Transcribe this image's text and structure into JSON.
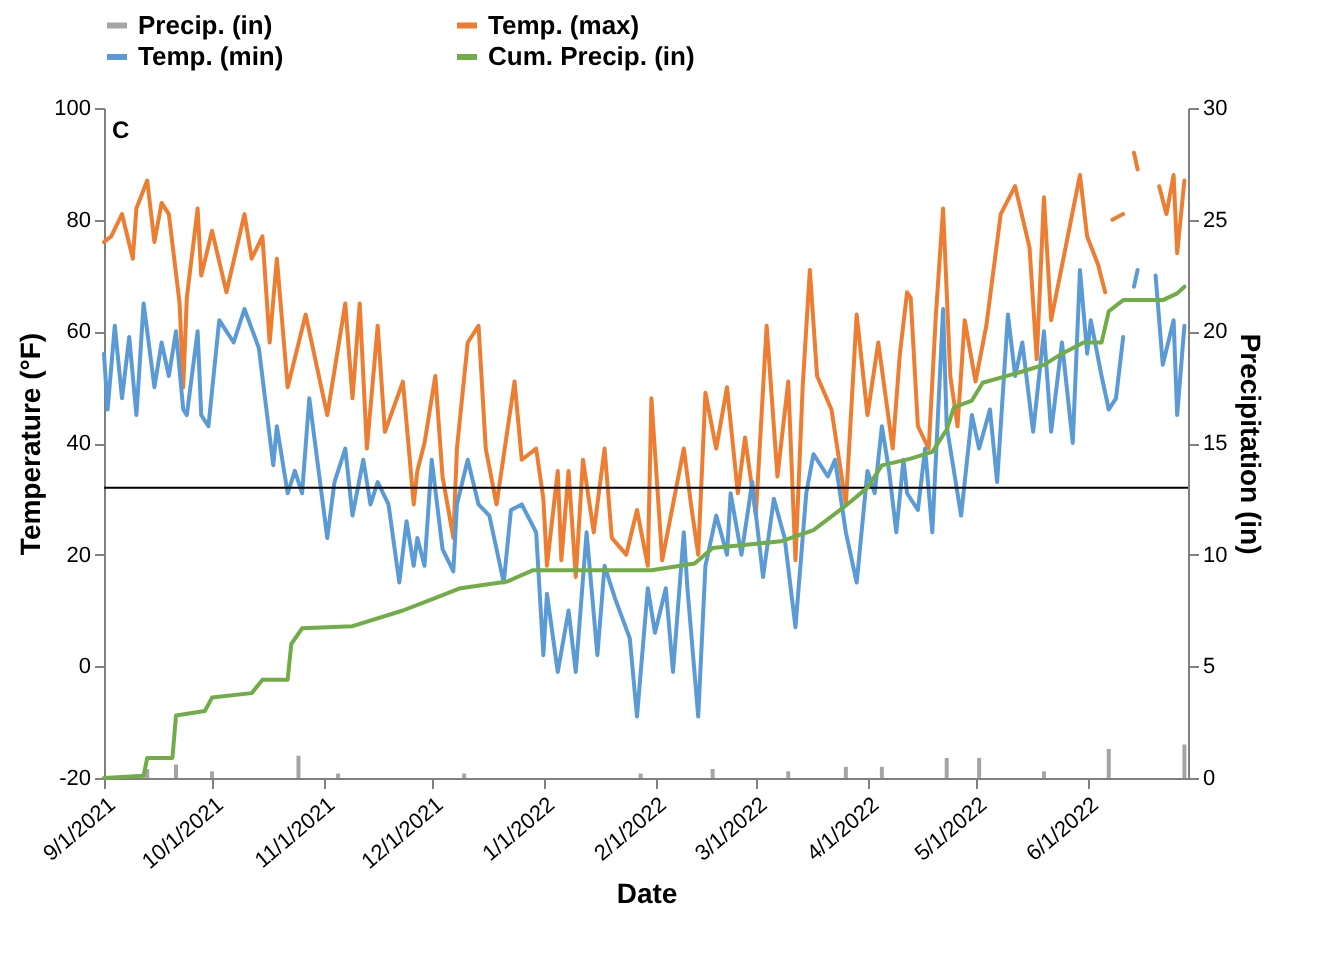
{
  "chart_data": {
    "type": "line",
    "xlabel": "Date",
    "ylabel": "Temperature (°F)",
    "y2label": "Precipitation (in)",
    "annotations": [
      "C"
    ],
    "legend": "top",
    "xlim": [
      "2021-09-01",
      "2022-06-29"
    ],
    "xticks": [
      {
        "value": "2021-09-01",
        "label": "9/1/2021"
      },
      {
        "value": "2021-10-01",
        "label": "10/1/2021"
      },
      {
        "value": "2021-11-01",
        "label": "11/1/2021"
      },
      {
        "value": "2021-12-01",
        "label": "12/1/2021"
      },
      {
        "value": "2022-01-01",
        "label": "1/1/2022"
      },
      {
        "value": "2022-02-01",
        "label": "2/1/2022"
      },
      {
        "value": "2022-03-01",
        "label": "3/1/2022"
      },
      {
        "value": "2022-04-01",
        "label": "4/1/2022"
      },
      {
        "value": "2022-05-01",
        "label": "5/1/2022"
      },
      {
        "value": "2022-06-01",
        "label": "6/1/2022"
      }
    ],
    "ylim": [
      -20,
      100
    ],
    "yticks": [
      -20,
      0,
      20,
      40,
      60,
      80,
      100
    ],
    "y2lim": [
      0,
      30
    ],
    "y2ticks": [
      0,
      5,
      10,
      15,
      20,
      25,
      30
    ],
    "ref_lines": [
      {
        "axis": "y",
        "value": 32,
        "color": "#000000"
      }
    ],
    "series": [
      {
        "name": "Precip. (in)",
        "type": "bar",
        "axis": "y2",
        "color": "#a5a5a5",
        "x": [
          "2021-09-13",
          "2021-09-21",
          "2021-10-01",
          "2021-10-25",
          "2021-11-05",
          "2021-12-10",
          "2022-01-28",
          "2022-02-17",
          "2022-03-10",
          "2022-03-26",
          "2022-04-05",
          "2022-04-23",
          "2022-05-02",
          "2022-05-20",
          "2022-06-07",
          "2022-06-28"
        ],
        "values": [
          0.4,
          0.6,
          0.3,
          1.0,
          0.2,
          0.2,
          0.2,
          0.4,
          0.3,
          0.5,
          0.5,
          0.9,
          0.9,
          0.3,
          1.3,
          1.5
        ]
      },
      {
        "name": "Temp. (max)",
        "type": "line",
        "color": "#ed7d31",
        "x": [
          "2021-09-01",
          "2021-09-03",
          "2021-09-06",
          "2021-09-09",
          "2021-09-10",
          "2021-09-13",
          "2021-09-15",
          "2021-09-17",
          "2021-09-19",
          "2021-09-22",
          "2021-09-23",
          "2021-09-24",
          "2021-09-27",
          "2021-09-28",
          "2021-10-01",
          "2021-10-05",
          "2021-10-10",
          "2021-10-12",
          "2021-10-15",
          "2021-10-17",
          "2021-10-19",
          "2021-10-22",
          "2021-10-27",
          "2021-11-02",
          "2021-11-07",
          "2021-11-09",
          "2021-11-11",
          "2021-11-13",
          "2021-11-16",
          "2021-11-18",
          "2021-11-23",
          "2021-11-26",
          "2021-11-27",
          "2021-11-29",
          "2021-12-02",
          "2021-12-04",
          "2021-12-07",
          "2021-12-08",
          "2021-12-11",
          "2021-12-14",
          "2021-12-16",
          "2021-12-19",
          "2021-12-24",
          "2021-12-26",
          "2021-12-30",
          "2022-01-01",
          "2022-01-02",
          "2022-01-05",
          "2022-01-06",
          "2022-01-08",
          "2022-01-10",
          "2022-01-12",
          "2022-01-15",
          "2022-01-18",
          "2022-01-20",
          "2022-01-24",
          "2022-01-27",
          "2022-01-30",
          "2022-01-31",
          "2022-02-03",
          "2022-02-06",
          "2022-02-09",
          "2022-02-11",
          "2022-02-13",
          "2022-02-15",
          "2022-02-18",
          "2022-02-21",
          "2022-02-24",
          "2022-02-26",
          "2022-03-01",
          "2022-03-04",
          "2022-03-07",
          "2022-03-10",
          "2022-03-12",
          "2022-03-14",
          "2022-03-16",
          "2022-03-18",
          "2022-03-22",
          "2022-03-26",
          "2022-03-29",
          "2022-04-01",
          "2022-04-04",
          "2022-04-08",
          "2022-04-10",
          "2022-04-12",
          "2022-04-13",
          "2022-04-15",
          "2022-04-18",
          "2022-04-20",
          "2022-04-22",
          "2022-04-24",
          "2022-04-26",
          "2022-04-28",
          "2022-05-01",
          "2022-05-04",
          "2022-05-08",
          "2022-05-12",
          "2022-05-16",
          "2022-05-18",
          "2022-05-20",
          "2022-05-22",
          "2022-05-26",
          "2022-05-30",
          "2022-06-01",
          "2022-06-04",
          "2022-06-06",
          "2022-06-07",
          "2022-06-08",
          "2022-06-11",
          "2022-06-12",
          "2022-06-14",
          "2022-06-15",
          "2022-06-16",
          "2022-06-21",
          "2022-06-23",
          "2022-06-25",
          "2022-06-26",
          "2022-06-28"
        ],
        "values": [
          76,
          77,
          81,
          73,
          82,
          87,
          76,
          83,
          81,
          65,
          50,
          66,
          82,
          70,
          78,
          67,
          81,
          73,
          77,
          58,
          73,
          50,
          63,
          45,
          65,
          48,
          65,
          39,
          61,
          42,
          51,
          29,
          35,
          40,
          52,
          34,
          23,
          39,
          58,
          61,
          39,
          29,
          51,
          37,
          39,
          30,
          18,
          35,
          19,
          35,
          16,
          37,
          24,
          39,
          23,
          20,
          28,
          18,
          48,
          19,
          29,
          39,
          29,
          20,
          49,
          39,
          50,
          31,
          41,
          27,
          61,
          34,
          51,
          19,
          50,
          71,
          52,
          46,
          29,
          63,
          45,
          58,
          39,
          56,
          67,
          66,
          43,
          39,
          63,
          82,
          52,
          43,
          62,
          51,
          61,
          81,
          86,
          75,
          55,
          84,
          62,
          75,
          88,
          77,
          72,
          67,
          null,
          80,
          81,
          null,
          92,
          89,
          null,
          86,
          81,
          88,
          74,
          87
        ]
      },
      {
        "name": "Temp. (min)",
        "type": "line",
        "color": "#5b9bd5",
        "x": [
          "2021-09-01",
          "2021-09-02",
          "2021-09-04",
          "2021-09-06",
          "2021-09-08",
          "2021-09-10",
          "2021-09-12",
          "2021-09-13",
          "2021-09-15",
          "2021-09-17",
          "2021-09-19",
          "2021-09-21",
          "2021-09-23",
          "2021-09-24",
          "2021-09-27",
          "2021-09-28",
          "2021-09-30",
          "2021-10-03",
          "2021-10-07",
          "2021-10-10",
          "2021-10-14",
          "2021-10-18",
          "2021-10-19",
          "2021-10-22",
          "2021-10-24",
          "2021-10-26",
          "2021-10-28",
          "2021-10-30",
          "2021-11-02",
          "2021-11-04",
          "2021-11-07",
          "2021-11-09",
          "2021-11-12",
          "2021-11-14",
          "2021-11-16",
          "2021-11-19",
          "2021-11-22",
          "2021-11-24",
          "2021-11-26",
          "2021-11-27",
          "2021-11-29",
          "2021-12-01",
          "2021-12-04",
          "2021-12-07",
          "2021-12-08",
          "2021-12-11",
          "2021-12-14",
          "2021-12-17",
          "2021-12-21",
          "2021-12-23",
          "2021-12-26",
          "2021-12-30",
          "2022-01-01",
          "2022-01-02",
          "2022-01-05",
          "2022-01-08",
          "2022-01-10",
          "2022-01-13",
          "2022-01-16",
          "2022-01-18",
          "2022-01-21",
          "2022-01-25",
          "2022-01-27",
          "2022-01-30",
          "2022-02-01",
          "2022-02-04",
          "2022-02-06",
          "2022-02-09",
          "2022-02-10",
          "2022-02-13",
          "2022-02-15",
          "2022-02-18",
          "2022-02-21",
          "2022-02-22",
          "2022-02-25",
          "2022-02-28",
          "2022-03-03",
          "2022-03-06",
          "2022-03-09",
          "2022-03-12",
          "2022-03-15",
          "2022-03-17",
          "2022-03-21",
          "2022-03-23",
          "2022-03-26",
          "2022-03-29",
          "2022-04-01",
          "2022-04-03",
          "2022-04-05",
          "2022-04-07",
          "2022-04-09",
          "2022-04-11",
          "2022-04-12",
          "2022-04-15",
          "2022-04-17",
          "2022-04-19",
          "2022-04-22",
          "2022-04-23",
          "2022-04-26",
          "2022-04-27",
          "2022-04-30",
          "2022-05-02",
          "2022-05-05",
          "2022-05-07",
          "2022-05-10",
          "2022-05-12",
          "2022-05-14",
          "2022-05-17",
          "2022-05-20",
          "2022-05-22",
          "2022-05-25",
          "2022-05-28",
          "2022-05-30",
          "2022-06-01",
          "2022-06-02",
          "2022-06-05",
          "2022-06-07",
          "2022-06-09",
          "2022-06-11",
          "2022-06-12",
          "2022-06-14",
          "2022-06-15",
          "2022-06-16",
          "2022-06-20",
          "2022-06-22",
          "2022-06-25",
          "2022-06-26",
          "2022-06-28"
        ],
        "values": [
          56,
          46,
          61,
          48,
          59,
          45,
          65,
          60,
          50,
          58,
          52,
          60,
          46,
          45,
          60,
          45,
          43,
          62,
          58,
          64,
          57,
          36,
          43,
          31,
          35,
          31,
          48,
          38,
          23,
          33,
          39,
          27,
          37,
          29,
          33,
          29,
          15,
          26,
          18,
          23,
          18,
          37,
          21,
          17,
          29,
          37,
          29,
          27,
          15,
          28,
          29,
          24,
          2,
          13,
          -1,
          10,
          -1,
          24,
          2,
          18,
          12,
          5,
          -9,
          14,
          6,
          14,
          -1,
          24,
          14,
          -9,
          18,
          27,
          20,
          31,
          20,
          33,
          16,
          30,
          23,
          7,
          31,
          38,
          34,
          37,
          24,
          15,
          35,
          31,
          43,
          35,
          24,
          37,
          31,
          28,
          39,
          24,
          64,
          43,
          31,
          27,
          45,
          39,
          46,
          33,
          63,
          52,
          58,
          42,
          60,
          42,
          58,
          40,
          71,
          56,
          62,
          52,
          46,
          48,
          59,
          null,
          68,
          71,
          null,
          70,
          54,
          62,
          45,
          61
        ]
      },
      {
        "name": "Cum. Precip. (in)",
        "type": "line",
        "axis": "y2",
        "color": "#70ad47",
        "x": [
          "2021-09-01",
          "2021-09-12",
          "2021-09-13",
          "2021-09-20",
          "2021-09-21",
          "2021-09-29",
          "2021-10-01",
          "2021-10-12",
          "2021-10-15",
          "2021-10-22",
          "2021-10-23",
          "2021-10-26",
          "2021-11-09",
          "2021-11-23",
          "2021-12-01",
          "2021-12-09",
          "2021-12-22",
          "2021-12-29",
          "2022-01-31",
          "2022-02-12",
          "2022-02-17",
          "2022-03-08",
          "2022-03-17",
          "2022-03-26",
          "2022-04-01",
          "2022-04-05",
          "2022-04-13",
          "2022-04-19",
          "2022-04-23",
          "2022-04-25",
          "2022-04-30",
          "2022-05-03",
          "2022-05-14",
          "2022-05-20",
          "2022-05-25",
          "2022-05-31",
          "2022-06-05",
          "2022-06-07",
          "2022-06-11",
          "2022-06-22",
          "2022-06-26",
          "2022-06-28"
        ],
        "values": [
          0,
          0.1,
          0.9,
          0.9,
          2.8,
          3.0,
          3.6,
          3.8,
          4.4,
          4.4,
          6.0,
          6.7,
          6.8,
          7.5,
          8.0,
          8.5,
          8.8,
          9.3,
          9.3,
          9.6,
          10.3,
          10.6,
          11.1,
          12.2,
          13.0,
          14.0,
          14.3,
          14.6,
          15.6,
          16.6,
          16.9,
          17.7,
          18.2,
          18.5,
          19.0,
          19.5,
          19.5,
          20.9,
          21.4,
          21.4,
          21.7,
          22.0
        ]
      }
    ]
  }
}
